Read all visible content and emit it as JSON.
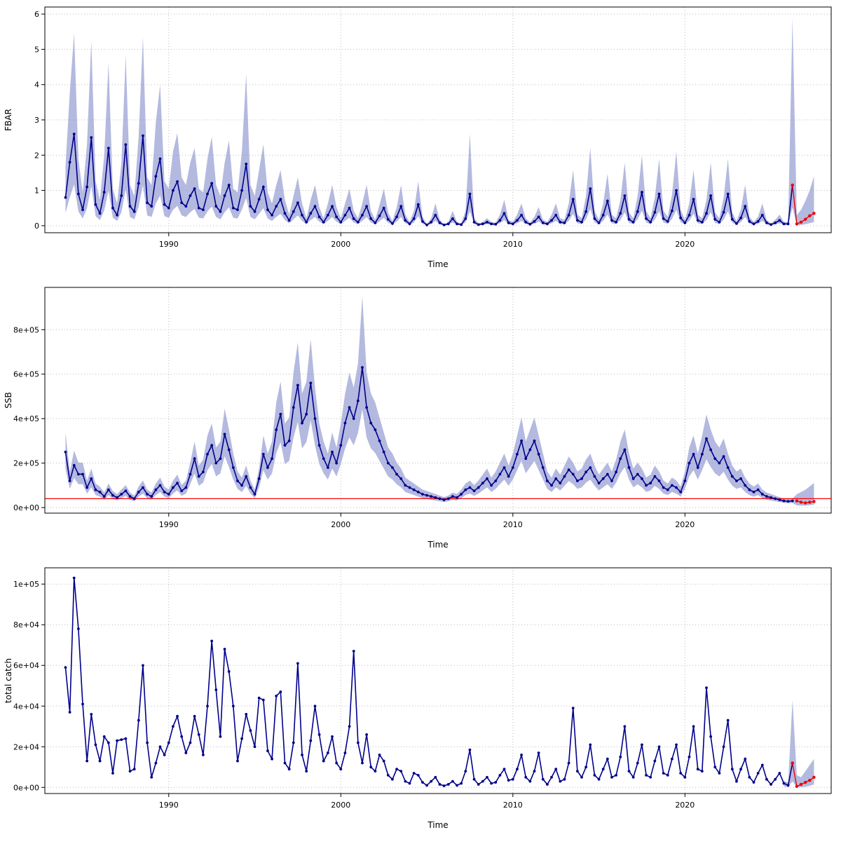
{
  "colors": {
    "line": "#00008B",
    "band": "#8C94CE",
    "forecast": "#EE0000",
    "ref_line": "#FF0000",
    "grid": "#BBBBBB",
    "axis": "#000000"
  },
  "chart_data": [
    {
      "id": "fbar",
      "type": "line",
      "title": "",
      "xlabel": "Time",
      "ylabel": "FBAR",
      "xlim": [
        1982.8,
        2028.5
      ],
      "ylim": [
        -0.2,
        6.2
      ],
      "xticks": [
        1990,
        2000,
        2010,
        2020
      ],
      "yticks": [
        0,
        1,
        2,
        3,
        4,
        5,
        6
      ],
      "ytick_labels": [
        "0",
        "1",
        "2",
        "3",
        "4",
        "5",
        "6"
      ],
      "grid": true,
      "x_start": 1984.0,
      "x_step": 0.25,
      "values": [
        0.8,
        1.8,
        2.6,
        0.9,
        0.45,
        1.1,
        2.5,
        0.6,
        0.35,
        0.95,
        2.2,
        0.5,
        0.3,
        0.85,
        2.3,
        0.55,
        0.4,
        1.2,
        2.55,
        0.65,
        0.55,
        1.4,
        1.9,
        0.6,
        0.5,
        1.0,
        1.25,
        0.65,
        0.55,
        0.85,
        1.05,
        0.5,
        0.45,
        0.9,
        1.2,
        0.55,
        0.4,
        0.85,
        1.15,
        0.5,
        0.45,
        1.0,
        1.75,
        0.55,
        0.4,
        0.75,
        1.1,
        0.45,
        0.3,
        0.55,
        0.75,
        0.35,
        0.15,
        0.4,
        0.65,
        0.3,
        0.1,
        0.35,
        0.55,
        0.25,
        0.1,
        0.3,
        0.55,
        0.25,
        0.1,
        0.3,
        0.5,
        0.2,
        0.1,
        0.3,
        0.55,
        0.2,
        0.08,
        0.28,
        0.5,
        0.18,
        0.06,
        0.25,
        0.55,
        0.15,
        0.05,
        0.2,
        0.6,
        0.12,
        0.02,
        0.1,
        0.3,
        0.08,
        0.02,
        0.05,
        0.2,
        0.05,
        0.03,
        0.2,
        0.9,
        0.1,
        0.03,
        0.05,
        0.1,
        0.05,
        0.04,
        0.15,
        0.35,
        0.08,
        0.05,
        0.15,
        0.3,
        0.1,
        0.04,
        0.12,
        0.25,
        0.08,
        0.05,
        0.15,
        0.3,
        0.1,
        0.08,
        0.3,
        0.75,
        0.15,
        0.1,
        0.4,
        1.05,
        0.2,
        0.08,
        0.3,
        0.7,
        0.15,
        0.1,
        0.35,
        0.85,
        0.18,
        0.1,
        0.4,
        0.95,
        0.2,
        0.1,
        0.38,
        0.9,
        0.2,
        0.12,
        0.42,
        1.0,
        0.22,
        0.08,
        0.3,
        0.75,
        0.15,
        0.1,
        0.35,
        0.85,
        0.18,
        0.1,
        0.38,
        0.9,
        0.18,
        0.06,
        0.22,
        0.55,
        0.12,
        0.05,
        0.12,
        0.3,
        0.08,
        0.03,
        0.08,
        0.15,
        0.05,
        0.05,
        1.15
      ],
      "band": {
        "upper_mult": 2.1,
        "lower_mult": 0.45,
        "upper_overrides": {
          "1994.5": 4.3,
          "2007.5": 2.6,
          "2026.25": 5.9
        },
        "extra": {
          "x": [
            2026.5,
            2026.75,
            2027.0,
            2027.25,
            2027.5
          ],
          "upper": [
            0.3,
            0.45,
            0.7,
            1.0,
            1.4
          ],
          "lower": [
            0.01,
            0.02,
            0.04,
            0.07,
            0.1
          ]
        }
      },
      "forecast_points": [
        [
          2026.25,
          1.15
        ],
        [
          2026.5,
          0.05
        ],
        [
          2026.75,
          0.1
        ],
        [
          2027.0,
          0.18
        ],
        [
          2027.25,
          0.28
        ],
        [
          2027.5,
          0.35
        ]
      ]
    },
    {
      "id": "ssb",
      "type": "line",
      "title": "",
      "xlabel": "Time",
      "ylabel": "SSB",
      "xlim": [
        1982.8,
        2028.5
      ],
      "ylim": [
        -25000,
        990000
      ],
      "xticks": [
        1990,
        2000,
        2010,
        2020
      ],
      "yticks": [
        0,
        200000,
        400000,
        600000,
        800000
      ],
      "ytick_labels": [
        "0e+00",
        "2e+05",
        "4e+05",
        "6e+05",
        "8e+05"
      ],
      "grid": true,
      "ref_line_y": 40000,
      "x_start": 1984.0,
      "x_step": 0.25,
      "values": [
        250000,
        120000,
        190000,
        150000,
        150000,
        90000,
        130000,
        80000,
        70000,
        50000,
        80000,
        55000,
        45000,
        60000,
        75000,
        50000,
        40000,
        70000,
        90000,
        60000,
        50000,
        80000,
        100000,
        70000,
        60000,
        90000,
        110000,
        75000,
        90000,
        150000,
        220000,
        140000,
        160000,
        240000,
        280000,
        200000,
        220000,
        330000,
        260000,
        180000,
        120000,
        100000,
        140000,
        90000,
        60000,
        130000,
        240000,
        180000,
        220000,
        350000,
        420000,
        280000,
        300000,
        450000,
        550000,
        380000,
        420000,
        560000,
        400000,
        280000,
        220000,
        180000,
        250000,
        200000,
        280000,
        380000,
        450000,
        400000,
        480000,
        630000,
        450000,
        380000,
        350000,
        300000,
        250000,
        200000,
        180000,
        150000,
        130000,
        100000,
        90000,
        80000,
        70000,
        60000,
        55000,
        50000,
        45000,
        40000,
        35000,
        40000,
        50000,
        45000,
        60000,
        80000,
        90000,
        75000,
        90000,
        110000,
        130000,
        100000,
        120000,
        150000,
        180000,
        140000,
        180000,
        240000,
        300000,
        220000,
        260000,
        300000,
        240000,
        180000,
        120000,
        100000,
        130000,
        110000,
        140000,
        170000,
        150000,
        120000,
        130000,
        160000,
        180000,
        140000,
        110000,
        130000,
        150000,
        120000,
        160000,
        220000,
        260000,
        180000,
        130000,
        150000,
        130000,
        100000,
        110000,
        140000,
        120000,
        90000,
        80000,
        100000,
        90000,
        70000,
        120000,
        200000,
        240000,
        180000,
        240000,
        310000,
        260000,
        220000,
        200000,
        230000,
        180000,
        140000,
        120000,
        130000,
        100000,
        80000,
        70000,
        80000,
        60000,
        50000,
        45000,
        40000,
        35000,
        30000,
        28000,
        30000
      ],
      "band": {
        "upper_mult": 1.35,
        "lower_mult": 0.7,
        "upper_overrides": {
          "2001.25": 950000
        },
        "extra": {
          "x": [
            2026.5,
            2026.75,
            2027.0,
            2027.25,
            2027.5
          ],
          "upper": [
            60000,
            70000,
            80000,
            95000,
            110000
          ],
          "lower": [
            10000,
            9000,
            9000,
            11000,
            13000
          ]
        }
      },
      "forecast_points": [
        [
          2026.5,
          30000
        ],
        [
          2026.75,
          24000
        ],
        [
          2027.0,
          21000
        ],
        [
          2027.25,
          24000
        ],
        [
          2027.5,
          27000
        ]
      ]
    },
    {
      "id": "catch",
      "type": "line",
      "title": "",
      "xlabel": "Time",
      "ylabel": "total catch",
      "xlim": [
        1982.8,
        2028.5
      ],
      "ylim": [
        -3000,
        108000
      ],
      "xticks": [
        1990,
        2000,
        2010,
        2020
      ],
      "yticks": [
        0,
        20000,
        40000,
        60000,
        80000,
        100000
      ],
      "ytick_labels": [
        "0e+00",
        "2e+04",
        "4e+04",
        "6e+04",
        "8e+04",
        "1e+05"
      ],
      "grid": true,
      "x_start": 1984.0,
      "x_step": 0.25,
      "values": [
        59000,
        37000,
        103000,
        78000,
        41000,
        13000,
        36000,
        21000,
        13000,
        25000,
        22000,
        7000,
        23000,
        23500,
        24000,
        8000,
        9000,
        33000,
        60000,
        22000,
        5000,
        12000,
        20000,
        16000,
        22000,
        30000,
        35000,
        25000,
        17000,
        22000,
        35000,
        26000,
        16000,
        40000,
        72000,
        48000,
        25000,
        68000,
        57000,
        40000,
        13000,
        24000,
        36000,
        28000,
        20000,
        44000,
        43000,
        18000,
        14000,
        45000,
        47000,
        12000,
        9000,
        22000,
        61000,
        16000,
        8000,
        23000,
        40000,
        26000,
        13000,
        17000,
        25000,
        12000,
        9000,
        17000,
        30000,
        67000,
        22000,
        12000,
        26000,
        10000,
        8000,
        16000,
        13000,
        6000,
        4000,
        9000,
        8000,
        3000,
        2000,
        7000,
        6000,
        2500,
        1000,
        3000,
        5000,
        1500,
        800,
        1500,
        3000,
        1000,
        2000,
        8000,
        18500,
        4000,
        1500,
        3000,
        5000,
        2000,
        2500,
        6000,
        9000,
        3500,
        4000,
        9000,
        16000,
        5000,
        3000,
        8000,
        17000,
        4000,
        1500,
        5000,
        9000,
        3000,
        4000,
        12000,
        39000,
        8000,
        5000,
        10000,
        21000,
        6000,
        4000,
        9000,
        14000,
        5000,
        6000,
        15000,
        30000,
        8000,
        5000,
        12000,
        21000,
        6000,
        5000,
        13000,
        20000,
        7000,
        6000,
        14000,
        21000,
        7000,
        5000,
        15000,
        30000,
        9000,
        8000,
        49000,
        25000,
        10000,
        7000,
        20000,
        33000,
        9000,
        3000,
        9000,
        14000,
        5000,
        2500,
        7000,
        11000,
        4000,
        1500,
        4000,
        7000,
        2000,
        1000,
        12000
      ],
      "band": {
        "x": [
          2025.75,
          2026.0,
          2026.25,
          2026.5,
          2026.75,
          2027.0,
          2027.25,
          2027.5
        ],
        "upper": [
          3000,
          2500,
          43000,
          6000,
          5000,
          8000,
          11000,
          14000
        ],
        "lower": [
          500,
          200,
          3000,
          100,
          100,
          300,
          800,
          1500
        ]
      },
      "forecast_points": [
        [
          2026.25,
          12000
        ],
        [
          2026.5,
          500
        ],
        [
          2026.75,
          1500
        ],
        [
          2027.0,
          2500
        ],
        [
          2027.25,
          3500
        ],
        [
          2027.5,
          5000
        ]
      ]
    }
  ]
}
